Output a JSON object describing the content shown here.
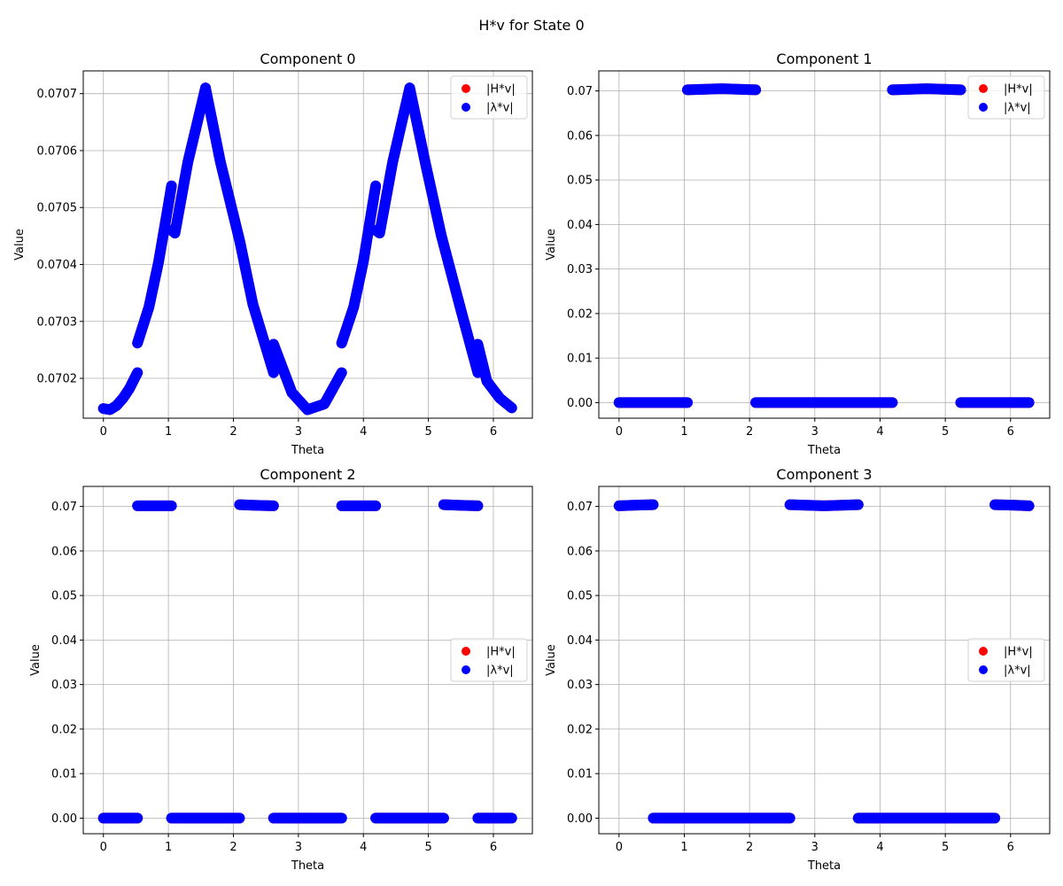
{
  "figure": {
    "title": "H*v for State 0"
  },
  "colors": {
    "hv": "#ff0000",
    "lv": "#0000ff",
    "grid": "#b0b0b0",
    "axis": "#000000"
  },
  "chart_data": [
    {
      "type": "scatter",
      "title": "Component 0",
      "xlabel": "Theta",
      "ylabel": "Value",
      "xlim": [
        -0.31,
        6.6
      ],
      "ylim": [
        0.07013,
        0.07074
      ],
      "xticks": [
        0,
        1,
        2,
        3,
        4,
        5,
        6
      ],
      "yticks": [
        0.0702,
        0.0703,
        0.0704,
        0.0705,
        0.0706,
        0.0707
      ],
      "ytick_labels": [
        "0.0702",
        "0.0703",
        "0.0704",
        "0.0705",
        "0.0706",
        "0.0707"
      ],
      "grid": true,
      "legend": {
        "position": "upper right",
        "entries": [
          "|H*v|",
          "|λ*v|"
        ]
      },
      "series": [
        {
          "name": "|H*v|",
          "color": "#ff0000",
          "segments": [
            {
              "x": [
                0,
                0.1,
                0.2,
                0.3,
                0.4,
                0.524
              ],
              "y": [
                0.070147,
                0.070145,
                0.070152,
                0.070165,
                0.070182,
                0.07021
              ]
            },
            {
              "x": [
                0.524,
                0.7,
                0.85,
                1.0,
                1.047
              ],
              "y": [
                0.070262,
                0.070325,
                0.070405,
                0.070505,
                0.070538
              ]
            },
            {
              "x": [
                1.047,
                1.1,
                1.3,
                1.571
              ],
              "y": [
                0.07046,
                0.070455,
                0.07058,
                0.07071
              ]
            },
            {
              "x": [
                1.571,
                1.8,
                2.1,
                2.3,
                2.618
              ],
              "y": [
                0.07071,
                0.07058,
                0.07044,
                0.07033,
                0.07021
              ]
            },
            {
              "x": [
                2.618,
                2.9,
                3.14,
                3.4,
                3.665
              ],
              "y": [
                0.07026,
                0.070175,
                0.070145,
                0.070155,
                0.07021
              ]
            },
            {
              "x": [
                3.665,
                3.85,
                4.0,
                4.189
              ],
              "y": [
                0.070262,
                0.070325,
                0.070405,
                0.070538
              ]
            },
            {
              "x": [
                4.189,
                4.25,
                4.45,
                4.712
              ],
              "y": [
                0.07046,
                0.070455,
                0.07058,
                0.07071
              ]
            },
            {
              "x": [
                4.712,
                4.95,
                5.2,
                5.5,
                5.76
              ],
              "y": [
                0.07071,
                0.07058,
                0.07045,
                0.07032,
                0.07021
              ]
            },
            {
              "x": [
                5.76,
                5.9,
                6.1,
                6.283
              ],
              "y": [
                0.07026,
                0.070195,
                0.070165,
                0.070148
              ]
            }
          ]
        },
        {
          "name": "|λ*v|",
          "color": "#0000ff",
          "segments": [
            {
              "x": [
                0,
                0.1,
                0.2,
                0.3,
                0.4,
                0.524
              ],
              "y": [
                0.070147,
                0.070145,
                0.070152,
                0.070165,
                0.070182,
                0.07021
              ]
            },
            {
              "x": [
                0.524,
                0.7,
                0.85,
                1.0,
                1.047
              ],
              "y": [
                0.070262,
                0.070325,
                0.070405,
                0.070505,
                0.070538
              ]
            },
            {
              "x": [
                1.047,
                1.1,
                1.3,
                1.571
              ],
              "y": [
                0.07046,
                0.070455,
                0.07058,
                0.07071
              ]
            },
            {
              "x": [
                1.571,
                1.8,
                2.1,
                2.3,
                2.618
              ],
              "y": [
                0.07071,
                0.07058,
                0.07044,
                0.07033,
                0.07021
              ]
            },
            {
              "x": [
                2.618,
                2.9,
                3.14,
                3.4,
                3.665
              ],
              "y": [
                0.07026,
                0.070175,
                0.070145,
                0.070155,
                0.07021
              ]
            },
            {
              "x": [
                3.665,
                3.85,
                4.0,
                4.189
              ],
              "y": [
                0.070262,
                0.070325,
                0.070405,
                0.070538
              ]
            },
            {
              "x": [
                4.189,
                4.25,
                4.45,
                4.712
              ],
              "y": [
                0.07046,
                0.070455,
                0.07058,
                0.07071
              ]
            },
            {
              "x": [
                4.712,
                4.95,
                5.2,
                5.5,
                5.76
              ],
              "y": [
                0.07071,
                0.07058,
                0.07045,
                0.07032,
                0.07021
              ]
            },
            {
              "x": [
                5.76,
                5.9,
                6.1,
                6.283
              ],
              "y": [
                0.07026,
                0.070195,
                0.070165,
                0.070148
              ]
            }
          ]
        }
      ]
    },
    {
      "type": "scatter",
      "title": "Component 1",
      "xlabel": "Theta",
      "ylabel": "Value",
      "xlim": [
        -0.31,
        6.6
      ],
      "ylim": [
        -0.0035,
        0.0745
      ],
      "xticks": [
        0,
        1,
        2,
        3,
        4,
        5,
        6
      ],
      "yticks": [
        0,
        0.01,
        0.02,
        0.03,
        0.04,
        0.05,
        0.06,
        0.07
      ],
      "ytick_labels": [
        "0.00",
        "0.01",
        "0.02",
        "0.03",
        "0.04",
        "0.05",
        "0.06",
        "0.07"
      ],
      "grid": true,
      "legend": {
        "position": "upper right",
        "entries": [
          "|H*v|",
          "|λ*v|"
        ]
      },
      "series": [
        {
          "name": "|H*v|",
          "color": "#ff0000",
          "segments": [
            {
              "x": [
                0,
                1.047
              ],
              "y": [
                0,
                0
              ]
            },
            {
              "x": [
                1.047,
                1.571,
                2.094
              ],
              "y": [
                0.07025,
                0.0705,
                0.07025
              ]
            },
            {
              "x": [
                2.094,
                4.189
              ],
              "y": [
                0,
                0
              ]
            },
            {
              "x": [
                4.189,
                4.712,
                5.236
              ],
              "y": [
                0.07025,
                0.0705,
                0.07025
              ]
            },
            {
              "x": [
                5.236,
                6.283
              ],
              "y": [
                0,
                0
              ]
            }
          ]
        },
        {
          "name": "|λ*v|",
          "color": "#0000ff",
          "segments": [
            {
              "x": [
                0,
                1.047
              ],
              "y": [
                0,
                0
              ]
            },
            {
              "x": [
                1.047,
                1.571,
                2.094
              ],
              "y": [
                0.07025,
                0.0705,
                0.07025
              ]
            },
            {
              "x": [
                2.094,
                4.189
              ],
              "y": [
                0,
                0
              ]
            },
            {
              "x": [
                4.189,
                4.712,
                5.236
              ],
              "y": [
                0.07025,
                0.0705,
                0.07025
              ]
            },
            {
              "x": [
                5.236,
                6.283
              ],
              "y": [
                0,
                0
              ]
            }
          ]
        }
      ]
    },
    {
      "type": "scatter",
      "title": "Component 2",
      "xlabel": "Theta",
      "ylabel": "Value",
      "xlim": [
        -0.31,
        6.6
      ],
      "ylim": [
        -0.0035,
        0.0745
      ],
      "xticks": [
        0,
        1,
        2,
        3,
        4,
        5,
        6
      ],
      "yticks": [
        0,
        0.01,
        0.02,
        0.03,
        0.04,
        0.05,
        0.06,
        0.07
      ],
      "ytick_labels": [
        "0.00",
        "0.01",
        "0.02",
        "0.03",
        "0.04",
        "0.05",
        "0.06",
        "0.07"
      ],
      "grid": true,
      "legend": {
        "position": "center right",
        "entries": [
          "|H*v|",
          "|λ*v|"
        ]
      },
      "series": [
        {
          "name": "|H*v|",
          "color": "#ff0000",
          "segments": [
            {
              "x": [
                0,
                0.524
              ],
              "y": [
                0,
                0
              ]
            },
            {
              "x": [
                0.524,
                1.047
              ],
              "y": [
                0.07015,
                0.07015
              ]
            },
            {
              "x": [
                1.047,
                2.094
              ],
              "y": [
                0,
                0
              ]
            },
            {
              "x": [
                2.094,
                2.35,
                2.618
              ],
              "y": [
                0.0704,
                0.07025,
                0.07015
              ]
            },
            {
              "x": [
                2.618,
                3.665
              ],
              "y": [
                0,
                0
              ]
            },
            {
              "x": [
                3.665,
                4.189
              ],
              "y": [
                0.07015,
                0.07015
              ]
            },
            {
              "x": [
                4.189,
                5.236
              ],
              "y": [
                0,
                0
              ]
            },
            {
              "x": [
                5.236,
                5.5,
                5.76
              ],
              "y": [
                0.0704,
                0.07025,
                0.07015
              ]
            },
            {
              "x": [
                5.76,
                6.283
              ],
              "y": [
                0,
                0
              ]
            }
          ]
        },
        {
          "name": "|λ*v|",
          "color": "#0000ff",
          "segments": [
            {
              "x": [
                0,
                0.524
              ],
              "y": [
                0,
                0
              ]
            },
            {
              "x": [
                0.524,
                1.047
              ],
              "y": [
                0.07015,
                0.07015
              ]
            },
            {
              "x": [
                1.047,
                2.094
              ],
              "y": [
                0,
                0
              ]
            },
            {
              "x": [
                2.094,
                2.35,
                2.618
              ],
              "y": [
                0.0704,
                0.07025,
                0.07015
              ]
            },
            {
              "x": [
                2.618,
                3.665
              ],
              "y": [
                0,
                0
              ]
            },
            {
              "x": [
                3.665,
                4.189
              ],
              "y": [
                0.07015,
                0.07015
              ]
            },
            {
              "x": [
                4.189,
                5.236
              ],
              "y": [
                0,
                0
              ]
            },
            {
              "x": [
                5.236,
                5.5,
                5.76
              ],
              "y": [
                0.0704,
                0.07025,
                0.07015
              ]
            },
            {
              "x": [
                5.76,
                6.283
              ],
              "y": [
                0,
                0
              ]
            }
          ]
        }
      ]
    },
    {
      "type": "scatter",
      "title": "Component 3",
      "xlabel": "Theta",
      "ylabel": "Value",
      "xlim": [
        -0.31,
        6.6
      ],
      "ylim": [
        -0.0035,
        0.0745
      ],
      "xticks": [
        0,
        1,
        2,
        3,
        4,
        5,
        6
      ],
      "yticks": [
        0,
        0.01,
        0.02,
        0.03,
        0.04,
        0.05,
        0.06,
        0.07
      ],
      "ytick_labels": [
        "0.00",
        "0.01",
        "0.02",
        "0.03",
        "0.04",
        "0.05",
        "0.06",
        "0.07"
      ],
      "grid": true,
      "legend": {
        "position": "center right",
        "entries": [
          "|H*v|",
          "|λ*v|"
        ]
      },
      "series": [
        {
          "name": "|H*v|",
          "color": "#ff0000",
          "segments": [
            {
              "x": [
                0,
                0.26,
                0.524
              ],
              "y": [
                0.07015,
                0.0703,
                0.0704
              ]
            },
            {
              "x": [
                0.524,
                2.618
              ],
              "y": [
                0,
                0
              ]
            },
            {
              "x": [
                2.618,
                3.14,
                3.665
              ],
              "y": [
                0.0704,
                0.07015,
                0.0704
              ]
            },
            {
              "x": [
                3.665,
                5.76
              ],
              "y": [
                0,
                0
              ]
            },
            {
              "x": [
                5.76,
                6.02,
                6.283
              ],
              "y": [
                0.0704,
                0.0703,
                0.07015
              ]
            }
          ]
        },
        {
          "name": "|λ*v|",
          "color": "#0000ff",
          "segments": [
            {
              "x": [
                0,
                0.26,
                0.524
              ],
              "y": [
                0.07015,
                0.0703,
                0.0704
              ]
            },
            {
              "x": [
                0.524,
                2.618
              ],
              "y": [
                0,
                0
              ]
            },
            {
              "x": [
                2.618,
                3.14,
                3.665
              ],
              "y": [
                0.0704,
                0.07015,
                0.0704
              ]
            },
            {
              "x": [
                3.665,
                5.76
              ],
              "y": [
                0,
                0
              ]
            },
            {
              "x": [
                5.76,
                6.02,
                6.283
              ],
              "y": [
                0.0704,
                0.0703,
                0.07015
              ]
            }
          ]
        }
      ]
    }
  ]
}
